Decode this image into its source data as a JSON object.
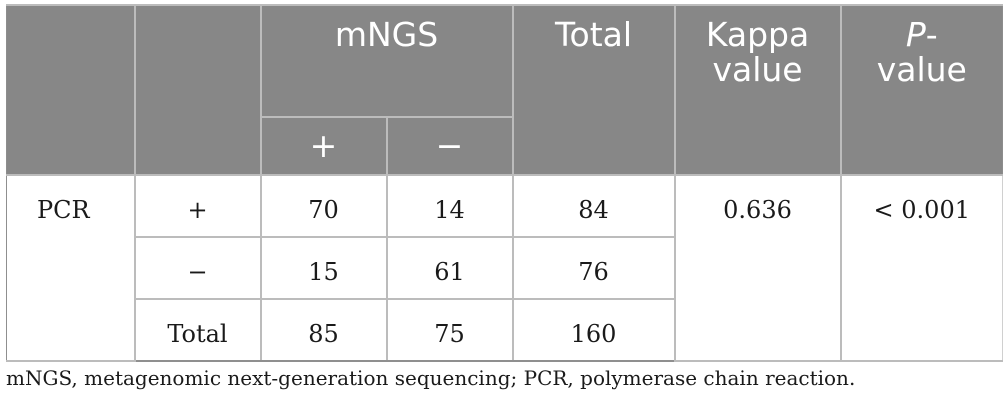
{
  "header": {
    "mngs": "mNGS",
    "total": "Total",
    "kappa_line1": "Kappa",
    "kappa_line2": "value",
    "p_italic": "P",
    "p_dash": "-",
    "p_line2": "value",
    "plus": "+",
    "minus": "−"
  },
  "rows": [
    {
      "group": "PCR",
      "label": "+",
      "mngs_pos": "70",
      "mngs_neg": "14",
      "total": "84"
    },
    {
      "label": "−",
      "mngs_pos": "15",
      "mngs_neg": "61",
      "total": "76"
    },
    {
      "label": "Total",
      "mngs_pos": "85",
      "mngs_neg": "75",
      "total": "160"
    }
  ],
  "kappa_value": "0.636",
  "p_value": "< 0.001",
  "footnote": "mNGS, metagenomic next-generation sequencing; PCR, polymerase chain reaction."
}
